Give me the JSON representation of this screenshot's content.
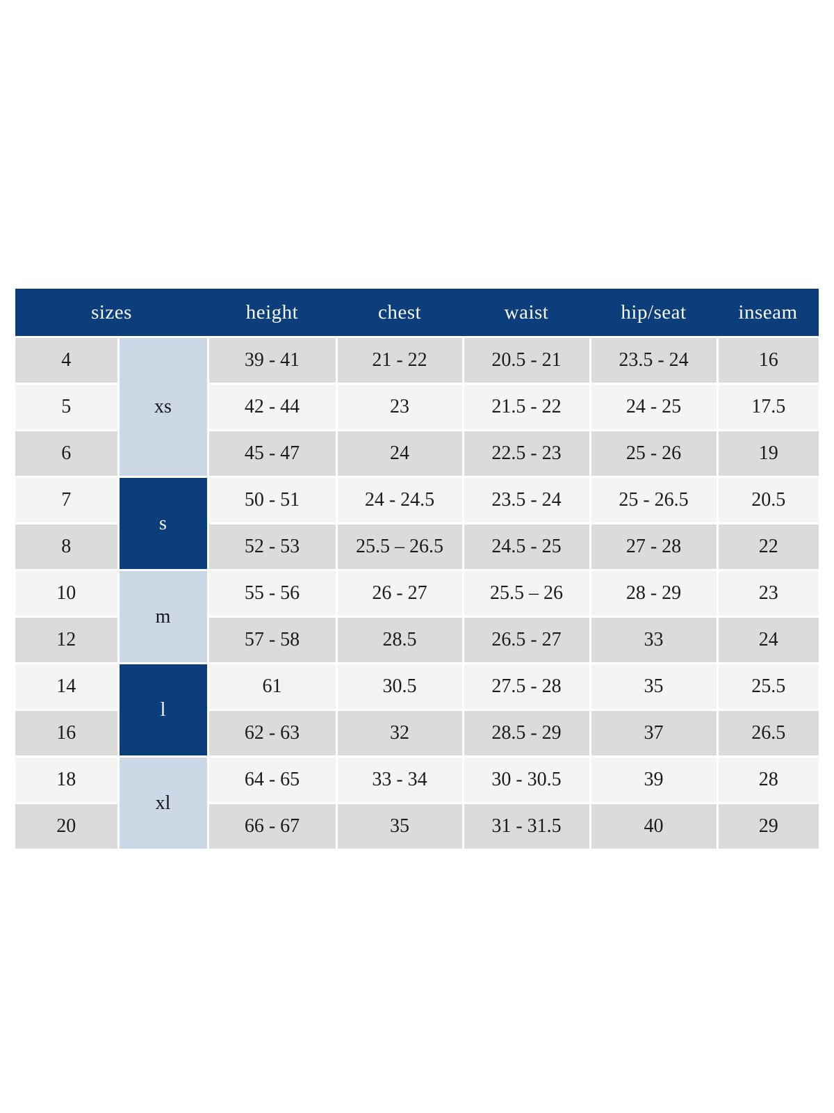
{
  "colors": {
    "header_navy": "#0d3e7c",
    "letter_dark_navy": "#0d3e7c",
    "letter_light_blue": "#ccd8e5",
    "row_gray": "#dbdbda",
    "row_off_white": "#f4f4f3",
    "divider_white": "#ffffff",
    "header_text": "#f7f9fb",
    "body_text": "#1b1b1b"
  },
  "table": {
    "columns": [
      "sizes",
      "height",
      "chest",
      "waist",
      "hip/seat",
      "inseam"
    ],
    "groups": [
      {
        "label": "xs",
        "tone": "light",
        "rows": [
          {
            "size": "4",
            "height": "39 - 41",
            "chest": "21 - 22",
            "waist": "20.5 - 21",
            "hip_seat": "23.5 - 24",
            "inseam": "16"
          },
          {
            "size": "5",
            "height": "42 - 44",
            "chest": "23",
            "waist": "21.5 - 22",
            "hip_seat": "24 - 25",
            "inseam": "17.5"
          },
          {
            "size": "6",
            "height": "45 - 47",
            "chest": "24",
            "waist": "22.5 - 23",
            "hip_seat": "25 - 26",
            "inseam": "19"
          }
        ]
      },
      {
        "label": "s",
        "tone": "dark",
        "rows": [
          {
            "size": "7",
            "height": "50 - 51",
            "chest": "24 - 24.5",
            "waist": "23.5 - 24",
            "hip_seat": "25 - 26.5",
            "inseam": "20.5"
          },
          {
            "size": "8",
            "height": "52 - 53",
            "chest": "25.5 – 26.5",
            "waist": "24.5 - 25",
            "hip_seat": "27 - 28",
            "inseam": "22"
          }
        ]
      },
      {
        "label": "m",
        "tone": "light",
        "rows": [
          {
            "size": "10",
            "height": "55 - 56",
            "chest": "26 - 27",
            "waist": "25.5 – 26",
            "hip_seat": "28 - 29",
            "inseam": "23"
          },
          {
            "size": "12",
            "height": "57 - 58",
            "chest": "28.5",
            "waist": "26.5 - 27",
            "hip_seat": "33",
            "inseam": "24"
          }
        ]
      },
      {
        "label": "l",
        "tone": "dark",
        "rows": [
          {
            "size": "14",
            "height": "61",
            "chest": "30.5",
            "waist": "27.5 - 28",
            "hip_seat": "35",
            "inseam": "25.5"
          },
          {
            "size": "16",
            "height": "62 - 63",
            "chest": "32",
            "waist": "28.5 - 29",
            "hip_seat": "37",
            "inseam": "26.5"
          }
        ]
      },
      {
        "label": "xl",
        "tone": "light",
        "rows": [
          {
            "size": "18",
            "height": "64 - 65",
            "chest": "33 - 34",
            "waist": "30 - 30.5",
            "hip_seat": "39",
            "inseam": "28"
          },
          {
            "size": "20",
            "height": "66 - 67",
            "chest": "35",
            "waist": "31 - 31.5",
            "hip_seat": "40",
            "inseam": "29"
          }
        ]
      }
    ]
  }
}
